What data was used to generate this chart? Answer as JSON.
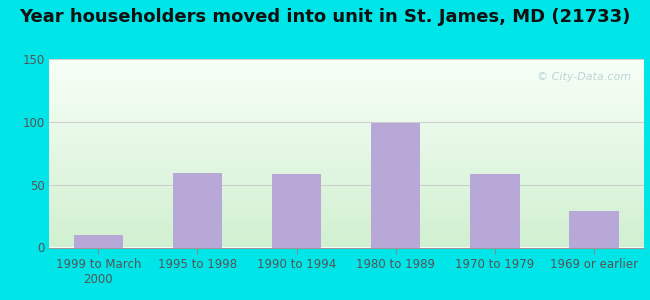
{
  "title": "Year householders moved into unit in St. James, MD (21733)",
  "categories": [
    "1999 to March\n2000",
    "1995 to 1998",
    "1990 to 1994",
    "1980 to 1989",
    "1970 to 1979",
    "1969 or earlier"
  ],
  "values": [
    10,
    59,
    58,
    99,
    58,
    29
  ],
  "bar_color": "#b8a8d8",
  "background_outer": "#00e5e8",
  "plot_bg_top": "#f0f8f0",
  "plot_bg_bottom": "#d8eed8",
  "ylim": [
    0,
    150
  ],
  "yticks": [
    0,
    50,
    100,
    150
  ],
  "watermark": "© City-Data.com",
  "title_fontsize": 13,
  "tick_fontsize": 8.5,
  "ytick_color": "#555555",
  "xtick_color": "#555555"
}
